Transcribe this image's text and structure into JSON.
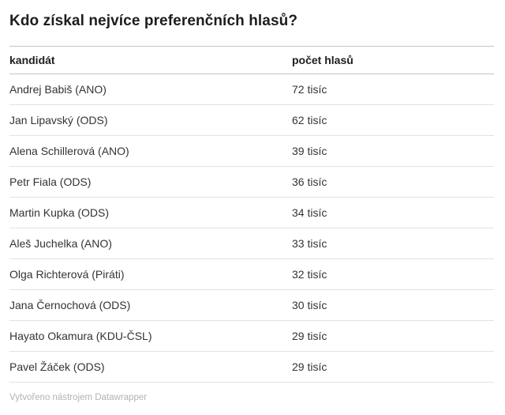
{
  "title": "Kdo získal nejvíce preferenčních hlasů?",
  "footer": "Vytvořeno nástrojem Datawrapper",
  "chart_data": {
    "type": "table",
    "title": "Kdo získal nejvíce preferenčních hlasů?",
    "columns": [
      "kandidát",
      "počet hlasů"
    ],
    "rows": [
      {
        "candidate": "Andrej Babiš (ANO)",
        "votes": "72 tisíc"
      },
      {
        "candidate": "Jan Lipavský (ODS)",
        "votes": "62 tisíc"
      },
      {
        "candidate": "Alena Schillerová (ANO)",
        "votes": "39 tisíc"
      },
      {
        "candidate": "Petr Fiala (ODS)",
        "votes": "36 tisíc"
      },
      {
        "candidate": "Martin Kupka (ODS)",
        "votes": "34 tisíc"
      },
      {
        "candidate": "Aleš Juchelka (ANO)",
        "votes": "33 tisíc"
      },
      {
        "candidate": "Olga Richterová (Piráti)",
        "votes": "32 tisíc"
      },
      {
        "candidate": "Jana Černochová (ODS)",
        "votes": "30 tisíc"
      },
      {
        "candidate": "Hayato Okamura (KDU-ČSL)",
        "votes": "29 tisíc"
      },
      {
        "candidate": "Pavel Žáček (ODS)",
        "votes": "29 tisíc"
      }
    ],
    "layout": {
      "grid": "horizontal-row-separators",
      "legend": "none"
    }
  }
}
